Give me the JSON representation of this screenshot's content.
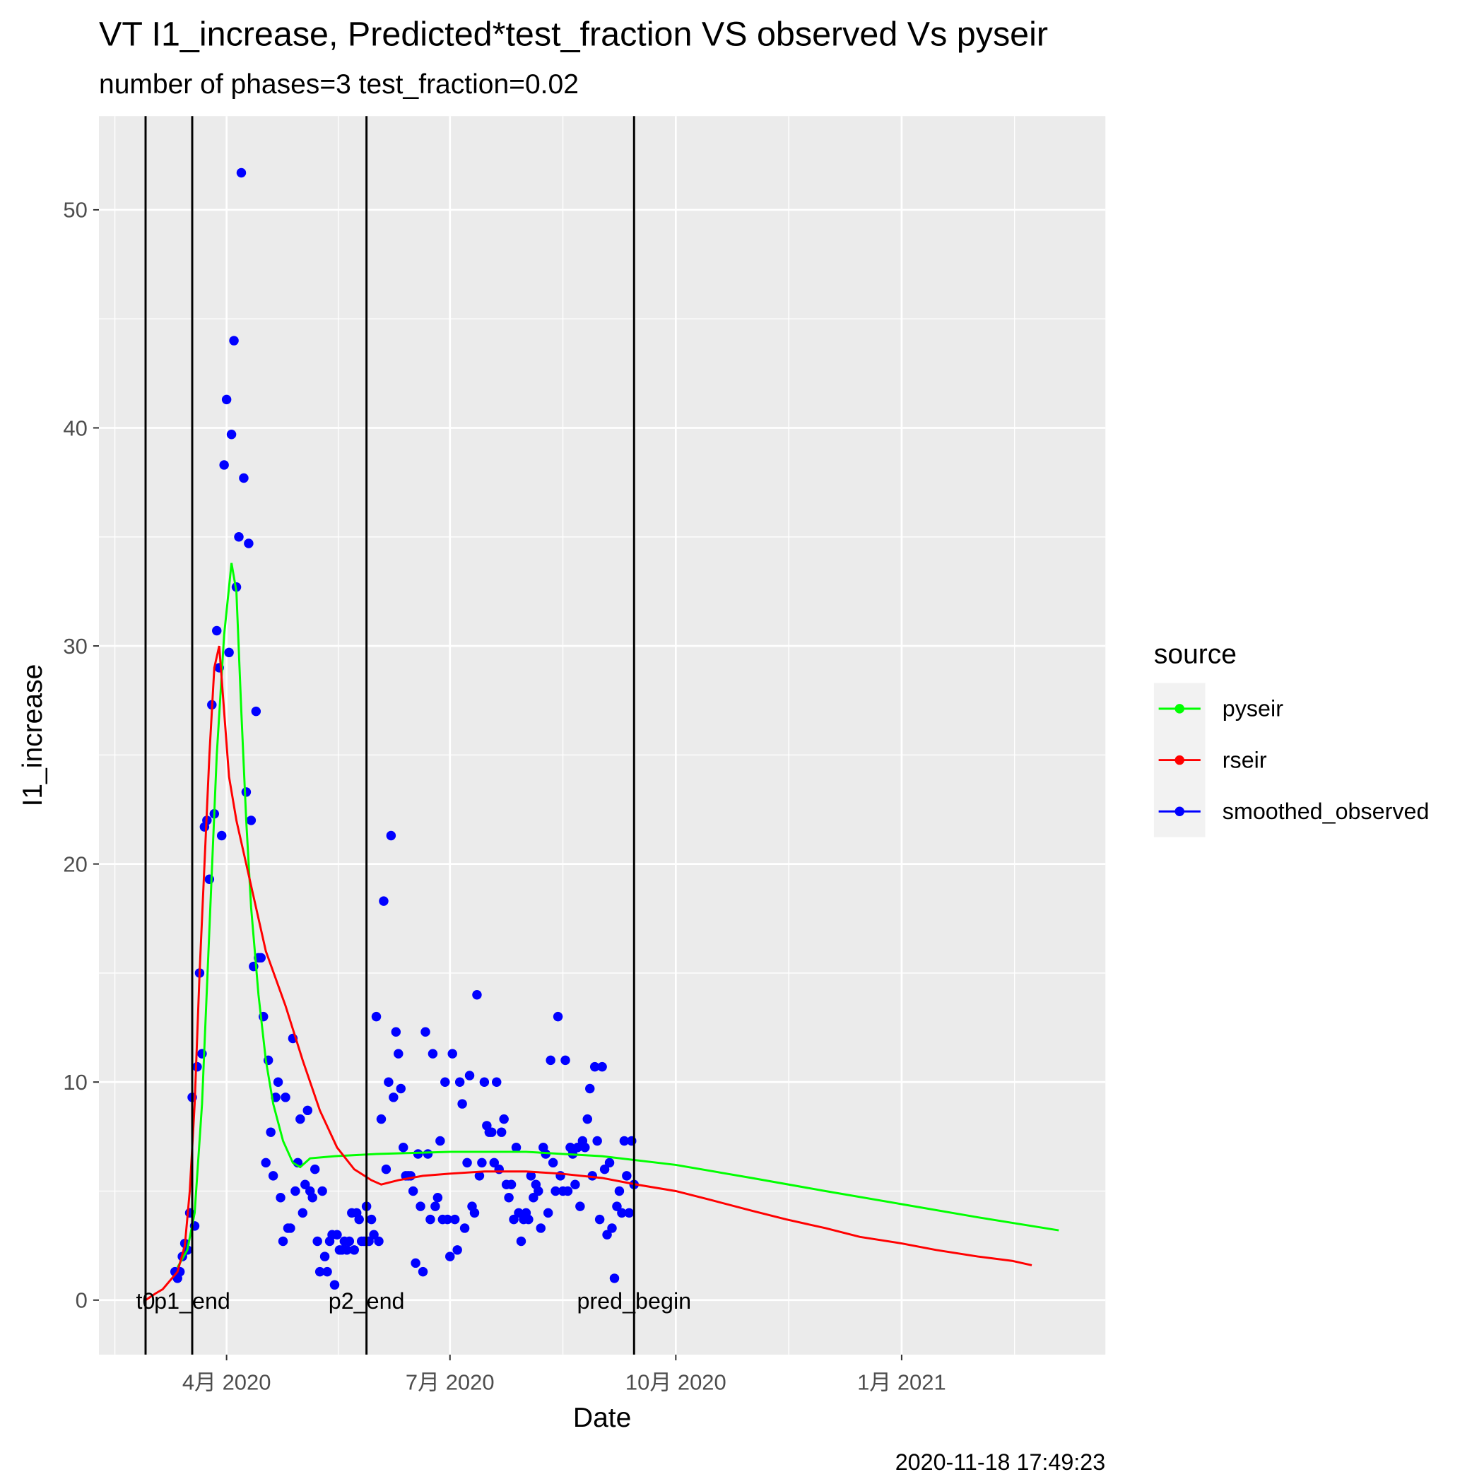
{
  "chart_data": {
    "type": "line",
    "title": "VT I1_increase, Predicted*test_fraction VS observed Vs pyseir",
    "subtitle": "number of phases=3   test_fraction=0.02",
    "x_label": "Date",
    "y_label": "I1_increase",
    "legend_title": "source",
    "caption": "2020-11-18 17:49:23",
    "xlim": [
      "2020-02-09",
      "2021-03-25"
    ],
    "xticks": [
      {
        "value": "2020-04-01",
        "label": "4月 2020"
      },
      {
        "value": "2020-07-01",
        "label": "7月 2020"
      },
      {
        "value": "2020-10-01",
        "label": "10月 2020"
      },
      {
        "value": "2021-01-01",
        "label": "1月 2021"
      }
    ],
    "ylim": [
      -2.5,
      54.3
    ],
    "yticks": [
      0,
      10,
      20,
      30,
      40,
      50
    ],
    "grid": true,
    "vlines": [
      {
        "x": "2020-02-28",
        "label": "t0"
      },
      {
        "x": "2020-03-18",
        "label": "p1_end"
      },
      {
        "x": "2020-05-28",
        "label": "p2_end"
      },
      {
        "x": "2020-09-14",
        "label": "pred_begin"
      }
    ],
    "series": [
      {
        "name": "pyseir",
        "color": "#00ff00",
        "type": "line",
        "x": [
          "2020-03-12",
          "2020-03-16",
          "2020-03-19",
          "2020-03-22",
          "2020-03-25",
          "2020-03-28",
          "2020-03-31",
          "2020-04-03",
          "2020-04-05",
          "2020-04-07",
          "2020-04-09",
          "2020-04-11",
          "2020-04-14",
          "2020-04-17",
          "2020-04-20",
          "2020-04-24",
          "2020-04-28",
          "2020-05-01",
          "2020-05-05",
          "2020-05-15",
          "2020-06-01",
          "2020-07-01",
          "2020-08-01",
          "2020-09-01",
          "2020-10-01",
          "2020-11-01",
          "2020-12-01",
          "2021-01-01",
          "2021-02-01",
          "2021-03-06"
        ],
        "values": [
          1.5,
          2.3,
          4,
          9,
          17,
          25,
          30.5,
          33.8,
          32.5,
          27,
          22,
          18,
          14,
          11,
          9,
          7.3,
          6.3,
          6.1,
          6.5,
          6.6,
          6.7,
          6.8,
          6.8,
          6.6,
          6.2,
          5.6,
          5.0,
          4.4,
          3.8,
          3.2
        ]
      },
      {
        "name": "rseir",
        "color": "#ff0000",
        "type": "line",
        "x": [
          "2020-02-28",
          "2020-03-03",
          "2020-03-06",
          "2020-03-09",
          "2020-03-12",
          "2020-03-15",
          "2020-03-17",
          "2020-03-19",
          "2020-03-21",
          "2020-03-23",
          "2020-03-25",
          "2020-03-27",
          "2020-03-29",
          "2020-03-31",
          "2020-04-02",
          "2020-04-05",
          "2020-04-10",
          "2020-04-17",
          "2020-04-25",
          "2020-05-02",
          "2020-05-09",
          "2020-05-16",
          "2020-05-23",
          "2020-05-30",
          "2020-06-03",
          "2020-06-10",
          "2020-06-20",
          "2020-07-01",
          "2020-07-15",
          "2020-08-01",
          "2020-08-15",
          "2020-09-01",
          "2020-09-15",
          "2020-10-01",
          "2020-10-15",
          "2020-11-01",
          "2020-11-15",
          "2020-12-01",
          "2020-12-15",
          "2021-01-01",
          "2021-01-15",
          "2021-02-01",
          "2021-02-15",
          "2021-02-23"
        ],
        "values": [
          0,
          0.3,
          0.5,
          0.9,
          1.3,
          2.5,
          5,
          9,
          15,
          20,
          25,
          29,
          30,
          27,
          24,
          22,
          19.5,
          16,
          13.5,
          11,
          8.7,
          7,
          6,
          5.5,
          5.3,
          5.5,
          5.7,
          5.8,
          5.9,
          5.9,
          5.8,
          5.6,
          5.3,
          5.0,
          4.6,
          4.1,
          3.7,
          3.3,
          2.9,
          2.6,
          2.3,
          2.0,
          1.8,
          1.6
        ]
      },
      {
        "name": "smoothed_observed",
        "color": "#0000ff",
        "type": "scatter",
        "x": [
          "2020-03-11",
          "2020-03-12",
          "2020-03-13",
          "2020-03-14",
          "2020-03-15",
          "2020-03-16",
          "2020-03-17",
          "2020-03-18",
          "2020-03-19",
          "2020-03-20",
          "2020-03-21",
          "2020-03-22",
          "2020-03-23",
          "2020-03-24",
          "2020-03-25",
          "2020-03-26",
          "2020-03-27",
          "2020-03-28",
          "2020-03-29",
          "2020-03-30",
          "2020-03-31",
          "2020-04-01",
          "2020-04-02",
          "2020-04-03",
          "2020-04-04",
          "2020-04-05",
          "2020-04-06",
          "2020-04-07",
          "2020-04-08",
          "2020-04-09",
          "2020-04-10",
          "2020-04-11",
          "2020-04-12",
          "2020-04-13",
          "2020-04-14",
          "2020-04-15",
          "2020-04-16",
          "2020-04-17",
          "2020-04-18",
          "2020-04-19",
          "2020-04-20",
          "2020-04-21",
          "2020-04-22",
          "2020-04-23",
          "2020-04-24",
          "2020-04-25",
          "2020-04-26",
          "2020-04-27",
          "2020-04-28",
          "2020-04-29",
          "2020-04-30",
          "2020-05-01",
          "2020-05-02",
          "2020-05-03",
          "2020-05-04",
          "2020-05-05",
          "2020-05-06",
          "2020-05-07",
          "2020-05-08",
          "2020-05-09",
          "2020-05-10",
          "2020-05-11",
          "2020-05-12",
          "2020-05-13",
          "2020-05-14",
          "2020-05-15",
          "2020-05-16",
          "2020-05-17",
          "2020-05-18",
          "2020-05-19",
          "2020-05-20",
          "2020-05-21",
          "2020-05-22",
          "2020-05-23",
          "2020-05-24",
          "2020-05-25",
          "2020-05-26",
          "2020-05-27",
          "2020-05-28",
          "2020-05-29",
          "2020-05-30",
          "2020-05-31",
          "2020-06-01",
          "2020-06-02",
          "2020-06-03",
          "2020-06-04",
          "2020-06-05",
          "2020-06-06",
          "2020-06-07",
          "2020-06-08",
          "2020-06-09",
          "2020-06-10",
          "2020-06-11",
          "2020-06-12",
          "2020-06-13",
          "2020-06-14",
          "2020-06-15",
          "2020-06-16",
          "2020-06-17",
          "2020-06-18",
          "2020-06-19",
          "2020-06-20",
          "2020-06-21",
          "2020-06-22",
          "2020-06-23",
          "2020-06-24",
          "2020-06-25",
          "2020-06-26",
          "2020-06-27",
          "2020-06-28",
          "2020-06-29",
          "2020-06-30",
          "2020-07-01",
          "2020-07-02",
          "2020-07-03",
          "2020-07-04",
          "2020-07-05",
          "2020-07-06",
          "2020-07-07",
          "2020-07-08",
          "2020-07-09",
          "2020-07-10",
          "2020-07-11",
          "2020-07-12",
          "2020-07-13",
          "2020-07-14",
          "2020-07-15",
          "2020-07-16",
          "2020-07-17",
          "2020-07-18",
          "2020-07-19",
          "2020-07-20",
          "2020-07-21",
          "2020-07-22",
          "2020-07-23",
          "2020-07-24",
          "2020-07-25",
          "2020-07-26",
          "2020-07-27",
          "2020-07-28",
          "2020-07-29",
          "2020-07-30",
          "2020-07-31",
          "2020-08-01",
          "2020-08-02",
          "2020-08-03",
          "2020-08-04",
          "2020-08-05",
          "2020-08-06",
          "2020-08-07",
          "2020-08-08",
          "2020-08-09",
          "2020-08-10",
          "2020-08-11",
          "2020-08-12",
          "2020-08-13",
          "2020-08-14",
          "2020-08-15",
          "2020-08-16",
          "2020-08-17",
          "2020-08-18",
          "2020-08-19",
          "2020-08-20",
          "2020-08-21",
          "2020-08-22",
          "2020-08-23",
          "2020-08-24",
          "2020-08-25",
          "2020-08-26",
          "2020-08-27",
          "2020-08-28",
          "2020-08-29",
          "2020-08-30",
          "2020-08-31",
          "2020-09-01",
          "2020-09-02",
          "2020-09-03",
          "2020-09-04",
          "2020-09-05",
          "2020-09-06",
          "2020-09-07",
          "2020-09-08",
          "2020-09-09",
          "2020-09-10",
          "2020-09-11",
          "2020-09-12",
          "2020-09-13",
          "2020-09-14"
        ],
        "values": [
          1.3,
          1.0,
          1.3,
          2.0,
          2.6,
          2.3,
          4.0,
          9.3,
          3.4,
          10.7,
          15.0,
          11.3,
          21.7,
          22.0,
          19.3,
          27.3,
          22.3,
          30.7,
          29.0,
          21.3,
          38.3,
          41.3,
          29.7,
          39.7,
          44.0,
          32.7,
          35.0,
          51.7,
          37.7,
          23.3,
          34.7,
          22.0,
          15.3,
          27.0,
          15.7,
          15.7,
          13.0,
          6.3,
          11.0,
          7.7,
          5.7,
          9.3,
          10.0,
          4.7,
          2.7,
          9.3,
          3.3,
          3.3,
          12.0,
          5.0,
          6.3,
          8.3,
          4.0,
          5.3,
          8.7,
          5.0,
          4.7,
          6.0,
          2.7,
          1.3,
          5.0,
          2.0,
          1.3,
          2.7,
          3.0,
          0.7,
          3.0,
          2.3,
          2.3,
          2.7,
          2.3,
          2.7,
          4.0,
          2.3,
          4.0,
          3.7,
          2.7,
          2.7,
          4.3,
          2.7,
          3.7,
          3.0,
          13.0,
          2.7,
          8.3,
          18.3,
          6.0,
          10.0,
          21.3,
          9.3,
          12.3,
          11.3,
          9.7,
          7.0,
          5.7,
          5.7,
          5.7,
          5.0,
          1.7,
          6.7,
          4.3,
          1.3,
          12.3,
          6.7,
          3.7,
          11.3,
          4.3,
          4.7,
          7.3,
          3.7,
          10.0,
          3.7,
          2.0,
          11.3,
          3.7,
          2.3,
          10.0,
          9.0,
          3.3,
          6.3,
          10.3,
          4.3,
          4.0,
          14.0,
          5.7,
          6.3,
          10.0,
          8.0,
          7.7,
          7.7,
          6.3,
          10.0,
          6.0,
          7.7,
          8.3,
          5.3,
          4.7,
          5.3,
          3.7,
          7.0,
          4.0,
          2.7,
          3.7,
          4.0,
          3.7,
          5.7,
          4.7,
          5.3,
          5.0,
          3.3,
          7.0,
          6.7,
          4.0,
          11.0,
          6.3,
          5.0,
          13.0,
          5.7,
          5.0,
          11.0,
          5.0,
          7.0,
          6.7,
          5.3,
          7.0,
          4.3,
          7.3,
          7.0,
          8.3,
          9.7,
          5.7,
          10.7,
          7.3,
          3.7,
          10.7,
          6.0,
          3.0,
          6.3,
          3.3,
          1.0,
          4.3,
          5.0,
          4.0,
          7.3,
          5.7,
          4.0,
          7.3,
          5.3
        ]
      }
    ]
  }
}
